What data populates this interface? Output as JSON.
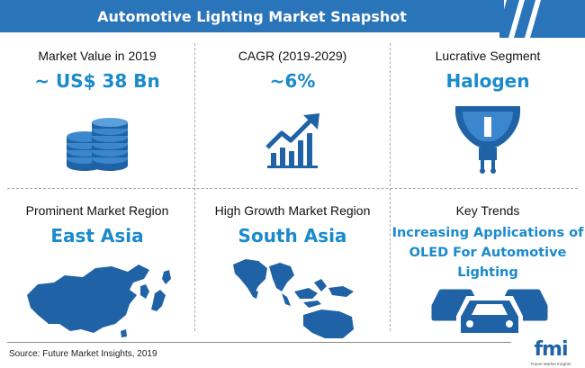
{
  "header": {
    "title": "Automotive Lighting Market Snapshot"
  },
  "cells": [
    {
      "label": "Market Value in 2019",
      "value": "~ US$ 38 Bn",
      "icon": "coins-stack-icon"
    },
    {
      "label": "CAGR (2019-2029)",
      "value": "~6%",
      "icon": "growth-chart-icon"
    },
    {
      "label": "Lucrative Segment",
      "value": "Halogen",
      "icon": "halogen-bulb-icon"
    },
    {
      "label": "Prominent Market Region",
      "value": "East Asia",
      "icon": "east-asia-map-icon"
    },
    {
      "label": "High Growth Market Region",
      "value": "South Asia",
      "icon": "south-asia-map-icon"
    },
    {
      "label": "Key Trends",
      "value": "Increasing Applications of OLED For Automotive Lighting",
      "icon": "cars-icon"
    }
  ],
  "footer": {
    "source": "Source: Future Market Insights, 2019",
    "logo": "fmi",
    "logo_sub": "Future Market Insights"
  },
  "colors": {
    "accent": "#2a74b9",
    "value_text": "#1a8acb",
    "icon": "#1f63a6"
  }
}
